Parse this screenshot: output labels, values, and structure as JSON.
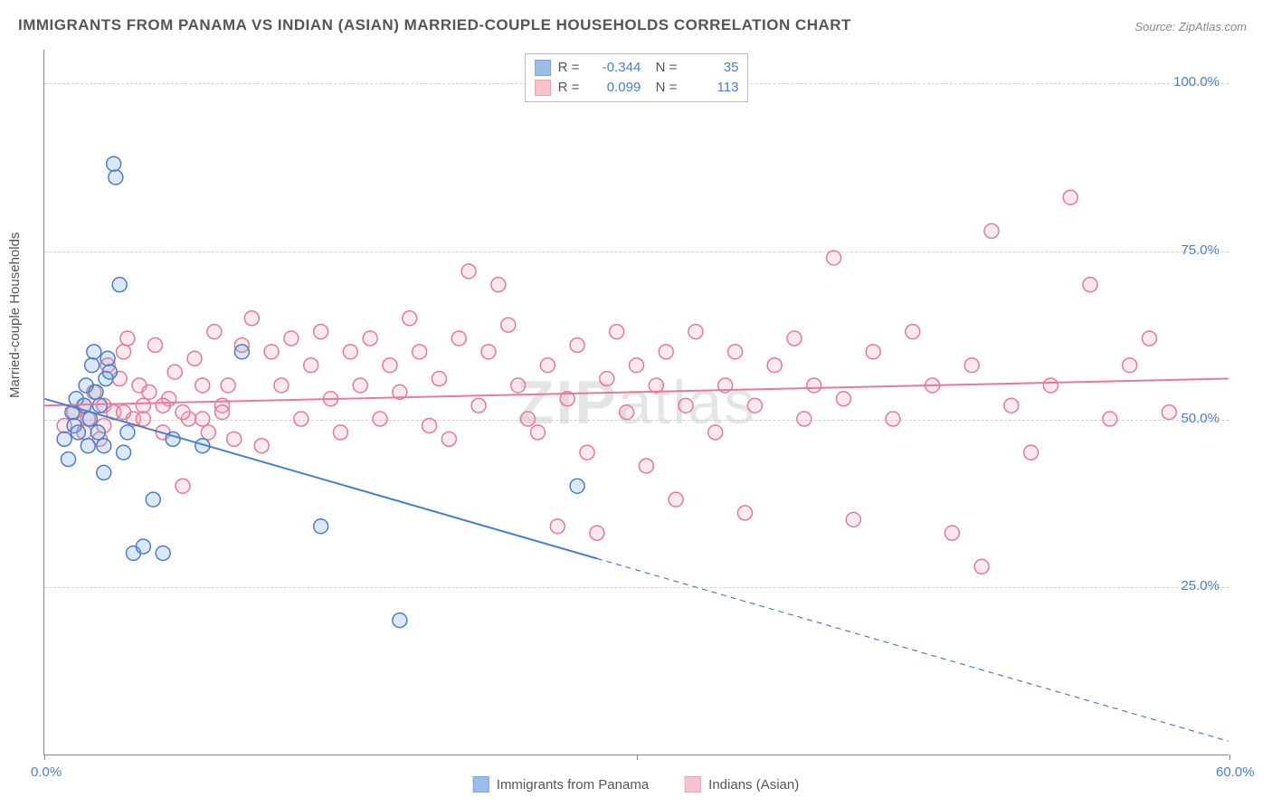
{
  "title": "IMMIGRANTS FROM PANAMA VS INDIAN (ASIAN) MARRIED-COUPLE HOUSEHOLDS CORRELATION CHART",
  "source": "Source: ZipAtlas.com",
  "watermark": "ZIPatlas",
  "ylabel": "Married-couple Households",
  "chart": {
    "type": "scatter",
    "xlim": [
      0,
      60
    ],
    "ylim": [
      0,
      105
    ],
    "xticks": [
      0,
      30,
      60
    ],
    "xtick_labels": [
      "0.0%",
      "",
      "60.0%"
    ],
    "yticks": [
      25,
      50,
      75,
      100
    ],
    "ytick_labels": [
      "25.0%",
      "50.0%",
      "75.0%",
      "100.0%"
    ],
    "background_color": "#ffffff",
    "grid_color": "#d0d0d0",
    "axis_color": "#888888",
    "marker_radius": 8,
    "marker_stroke_width": 1.5,
    "fill_opacity": 0.25,
    "line_width": 2
  },
  "series": {
    "panama": {
      "label": "Immigrants from Panama",
      "color": "#6fa3e0",
      "stroke": "#4a7ec9",
      "R": "-0.344",
      "N": "35",
      "trend_y_at_x0": 53,
      "trend_y_at_x60": 2,
      "trend_solid_until_x": 28,
      "points": [
        [
          1.0,
          47
        ],
        [
          1.2,
          44
        ],
        [
          1.4,
          51
        ],
        [
          1.5,
          49
        ],
        [
          1.6,
          53
        ],
        [
          1.7,
          48
        ],
        [
          2.0,
          52
        ],
        [
          2.1,
          55
        ],
        [
          2.2,
          46
        ],
        [
          2.3,
          50
        ],
        [
          2.4,
          58
        ],
        [
          2.5,
          60
        ],
        [
          2.6,
          54
        ],
        [
          2.7,
          48
        ],
        [
          2.8,
          52
        ],
        [
          3.0,
          46
        ],
        [
          3.1,
          56
        ],
        [
          3.2,
          59
        ],
        [
          3.3,
          57
        ],
        [
          3.5,
          88
        ],
        [
          3.6,
          86
        ],
        [
          3.8,
          70
        ],
        [
          4.0,
          45
        ],
        [
          4.2,
          48
        ],
        [
          4.5,
          30
        ],
        [
          5.0,
          31
        ],
        [
          5.5,
          38
        ],
        [
          6.0,
          30
        ],
        [
          6.5,
          47
        ],
        [
          8.0,
          46
        ],
        [
          10.0,
          60
        ],
        [
          14.0,
          34
        ],
        [
          18.0,
          20
        ],
        [
          27.0,
          40
        ],
        [
          3.0,
          42
        ]
      ]
    },
    "indians": {
      "label": "Indians (Asian)",
      "color": "#f4a7b9",
      "stroke": "#e77a95",
      "R": "0.099",
      "N": "113",
      "trend_y_at_x0": 52,
      "trend_y_at_x60": 56,
      "points": [
        [
          1,
          49
        ],
        [
          1.5,
          51
        ],
        [
          2,
          48
        ],
        [
          2.2,
          50
        ],
        [
          2.5,
          54
        ],
        [
          2.8,
          47
        ],
        [
          3,
          52
        ],
        [
          3.2,
          58
        ],
        [
          3.5,
          51
        ],
        [
          3.8,
          56
        ],
        [
          4,
          60
        ],
        [
          4.2,
          62
        ],
        [
          4.5,
          50
        ],
        [
          4.8,
          55
        ],
        [
          5,
          52
        ],
        [
          5.3,
          54
        ],
        [
          5.6,
          61
        ],
        [
          6,
          48
        ],
        [
          6.3,
          53
        ],
        [
          6.6,
          57
        ],
        [
          7,
          40
        ],
        [
          7.3,
          50
        ],
        [
          7.6,
          59
        ],
        [
          8,
          55
        ],
        [
          8.3,
          48
        ],
        [
          8.6,
          63
        ],
        [
          9,
          52
        ],
        [
          9.3,
          55
        ],
        [
          9.6,
          47
        ],
        [
          10,
          61
        ],
        [
          10.5,
          65
        ],
        [
          11,
          46
        ],
        [
          11.5,
          60
        ],
        [
          12,
          55
        ],
        [
          12.5,
          62
        ],
        [
          13,
          50
        ],
        [
          13.5,
          58
        ],
        [
          14,
          63
        ],
        [
          14.5,
          53
        ],
        [
          15,
          48
        ],
        [
          15.5,
          60
        ],
        [
          16,
          55
        ],
        [
          16.5,
          62
        ],
        [
          17,
          50
        ],
        [
          17.5,
          58
        ],
        [
          18,
          54
        ],
        [
          18.5,
          65
        ],
        [
          19,
          60
        ],
        [
          19.5,
          49
        ],
        [
          20,
          56
        ],
        [
          20.5,
          47
        ],
        [
          21,
          62
        ],
        [
          21.5,
          72
        ],
        [
          22,
          52
        ],
        [
          22.5,
          60
        ],
        [
          23,
          70
        ],
        [
          23.5,
          64
        ],
        [
          24,
          55
        ],
        [
          24.5,
          50
        ],
        [
          25,
          48
        ],
        [
          25.5,
          58
        ],
        [
          26,
          34
        ],
        [
          26.5,
          53
        ],
        [
          27,
          61
        ],
        [
          27.5,
          45
        ],
        [
          28,
          33
        ],
        [
          28.5,
          56
        ],
        [
          29,
          63
        ],
        [
          29.5,
          51
        ],
        [
          30,
          58
        ],
        [
          30.5,
          43
        ],
        [
          31,
          55
        ],
        [
          31.5,
          60
        ],
        [
          32,
          38
        ],
        [
          32.5,
          52
        ],
        [
          33,
          63
        ],
        [
          34,
          48
        ],
        [
          34.5,
          55
        ],
        [
          35,
          60
        ],
        [
          35.5,
          36
        ],
        [
          36,
          52
        ],
        [
          37,
          58
        ],
        [
          38,
          62
        ],
        [
          38.5,
          50
        ],
        [
          39,
          55
        ],
        [
          40,
          74
        ],
        [
          40.5,
          53
        ],
        [
          41,
          35
        ],
        [
          42,
          60
        ],
        [
          43,
          50
        ],
        [
          44,
          63
        ],
        [
          45,
          55
        ],
        [
          46,
          33
        ],
        [
          47,
          58
        ],
        [
          47.5,
          28
        ],
        [
          48,
          78
        ],
        [
          49,
          52
        ],
        [
          50,
          45
        ],
        [
          51,
          55
        ],
        [
          52,
          83
        ],
        [
          53,
          70
        ],
        [
          54,
          50
        ],
        [
          55,
          58
        ],
        [
          56,
          62
        ],
        [
          57,
          51
        ],
        [
          2,
          52
        ],
        [
          3,
          49
        ],
        [
          4,
          51
        ],
        [
          5,
          50
        ],
        [
          6,
          52
        ],
        [
          7,
          51
        ],
        [
          8,
          50
        ],
        [
          9,
          51
        ]
      ]
    }
  }
}
